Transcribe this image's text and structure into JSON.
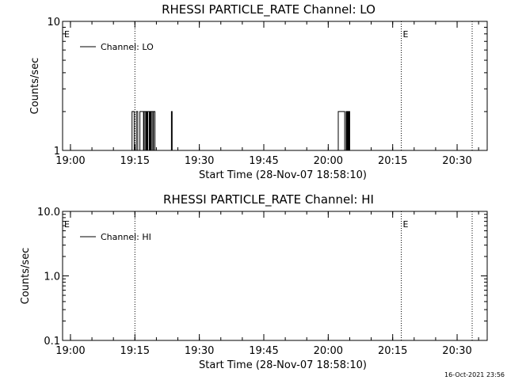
{
  "footer": {
    "timestamp": "16-Oct-2021 23:56"
  },
  "chart_data": [
    {
      "type": "line",
      "title": "RHESSI PARTICLE_RATE Channel: LO",
      "xlabel": "Start Time (28-Nov-07 18:58:10)",
      "ylabel": "Counts/sec",
      "yscale": "log",
      "ylim": [
        1,
        10
      ],
      "xlim": [
        "18:58:10",
        "20:37:00"
      ],
      "x_ticks": [
        "19:00",
        "19:15",
        "19:30",
        "19:45",
        "20:00",
        "20:15",
        "20:30"
      ],
      "y_ticks": [
        "1",
        "10"
      ],
      "legend": {
        "label": "Channel: LO",
        "position": "top-left"
      },
      "markers": [
        {
          "time": "19:15:00",
          "label": ""
        },
        {
          "time": "20:17:00",
          "label": "E"
        },
        {
          "time": "20:33:30",
          "label": ""
        }
      ],
      "left_marker_label": "E",
      "series": [
        {
          "name": "Channel: LO",
          "x": [
            "18:58:10",
            "19:14:10",
            "19:14:20",
            "19:14:40",
            "19:14:50",
            "19:15:10",
            "19:15:20",
            "19:15:30",
            "19:15:40",
            "19:16:00",
            "19:16:10",
            "19:16:50",
            "19:17:00",
            "19:17:10",
            "19:17:20",
            "19:17:30",
            "19:17:40",
            "19:17:50",
            "19:18:00",
            "19:18:10",
            "19:18:20",
            "19:18:30",
            "19:18:40",
            "19:18:50",
            "19:19:00",
            "19:19:10",
            "19:19:20",
            "19:19:30",
            "19:19:40",
            "19:23:20",
            "19:23:30",
            "19:23:40",
            "20:02:10",
            "20:02:20",
            "20:03:40",
            "20:03:50",
            "20:04:10",
            "20:04:20",
            "20:04:30",
            "20:04:40",
            "20:04:50",
            "20:05:00",
            "20:37:00"
          ],
          "values": [
            1,
            1,
            2,
            2,
            1,
            1,
            2,
            2,
            1,
            1,
            2,
            2,
            1,
            2,
            2,
            1,
            2,
            1,
            2,
            2,
            1,
            2,
            1,
            2,
            2,
            1,
            2,
            2,
            1,
            1,
            2,
            1,
            1,
            2,
            2,
            1,
            2,
            1,
            2,
            1,
            2,
            1,
            1
          ]
        }
      ]
    },
    {
      "type": "line",
      "title": "RHESSI PARTICLE_RATE Channel: HI",
      "xlabel": "Start Time (28-Nov-07 18:58:10)",
      "ylabel": "Counts/sec",
      "yscale": "log",
      "ylim": [
        0.1,
        10
      ],
      "xlim": [
        "18:58:10",
        "20:37:00"
      ],
      "x_ticks": [
        "19:00",
        "19:15",
        "19:30",
        "19:45",
        "20:00",
        "20:15",
        "20:30"
      ],
      "y_ticks": [
        "0.1",
        "1.0",
        "10.0"
      ],
      "legend": {
        "label": "Channel: HI",
        "position": "top-left"
      },
      "markers": [
        {
          "time": "19:15:00",
          "label": ""
        },
        {
          "time": "20:17:00",
          "label": "E"
        },
        {
          "time": "20:33:30",
          "label": ""
        }
      ],
      "left_marker_label": "E",
      "series": [
        {
          "name": "Channel: HI",
          "x": [],
          "values": []
        }
      ]
    }
  ]
}
